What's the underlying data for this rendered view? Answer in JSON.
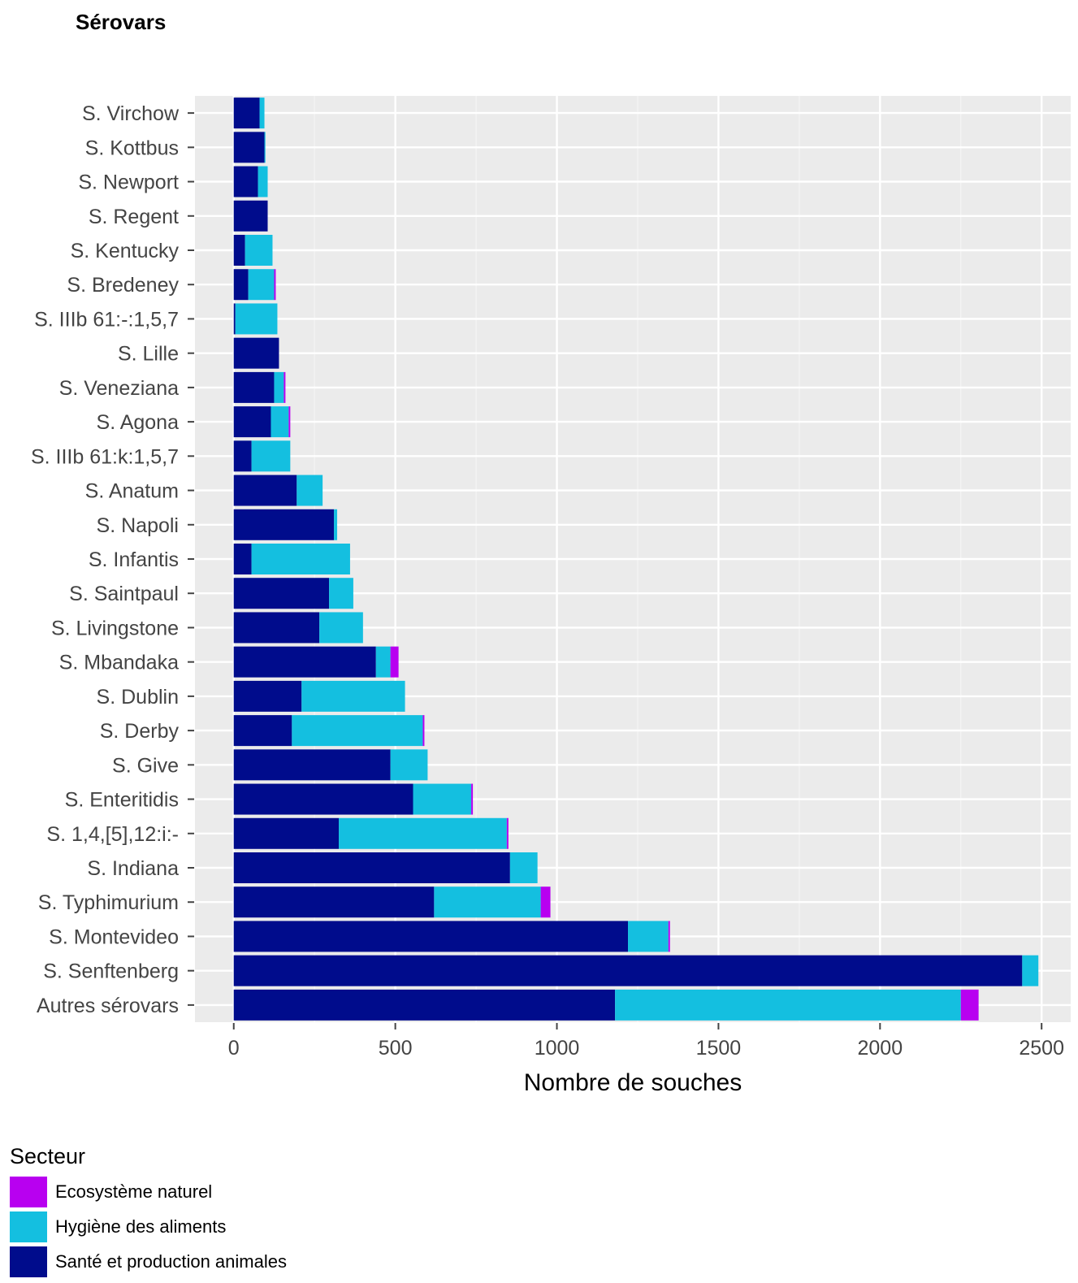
{
  "page": {
    "heading": "Sérovars"
  },
  "chart_data": {
    "type": "bar",
    "orientation": "horizontal",
    "stacked": true,
    "categories": [
      "S. Virchow",
      "S. Kottbus",
      "S. Newport",
      "S. Regent",
      "S. Kentucky",
      "S. Bredeney",
      "S. IIIb 61:-:1,5,7",
      "S. Lille",
      "S. Veneziana",
      "S. Agona",
      "S. IIIb 61:k:1,5,7",
      "S. Anatum",
      "S. Napoli",
      "S. Infantis",
      "S. Saintpaul",
      "S. Livingstone",
      "S. Mbandaka",
      "S. Dublin",
      "S. Derby",
      "S. Give",
      "S. Enteritidis",
      "S. 1,4,[5],12:i:-",
      "S. Indiana",
      "S. Typhimurium",
      "S. Montevideo",
      "S. Senftenberg",
      "Autres sérovars"
    ],
    "series": [
      {
        "name": "Santé et production animales",
        "color": "#000C8C",
        "values": [
          80,
          95,
          75,
          105,
          35,
          45,
          5,
          140,
          125,
          115,
          55,
          195,
          310,
          55,
          295,
          265,
          440,
          210,
          180,
          485,
          555,
          325,
          855,
          620,
          1220,
          2440,
          1180
        ]
      },
      {
        "name": "Hygiène des aliments",
        "color": "#14BFE0",
        "values": [
          15,
          3,
          30,
          0,
          85,
          80,
          130,
          0,
          30,
          55,
          120,
          80,
          10,
          305,
          75,
          135,
          45,
          320,
          405,
          115,
          180,
          520,
          85,
          330,
          125,
          50,
          1070
        ]
      },
      {
        "name": "Ecosystème naturel",
        "color": "#B800F0",
        "values": [
          0,
          0,
          0,
          0,
          0,
          5,
          0,
          0,
          5,
          5,
          0,
          0,
          0,
          0,
          0,
          0,
          25,
          0,
          5,
          0,
          5,
          5,
          0,
          30,
          5,
          0,
          55
        ]
      }
    ],
    "xlabel": "Nombre de souches",
    "ylabel": "",
    "xlim": [
      -120,
      2590
    ],
    "xticks": [
      0,
      500,
      1000,
      1500,
      2000,
      2500
    ],
    "grid": true,
    "legend": {
      "title": "Secteur",
      "position": "bottom-left"
    }
  }
}
